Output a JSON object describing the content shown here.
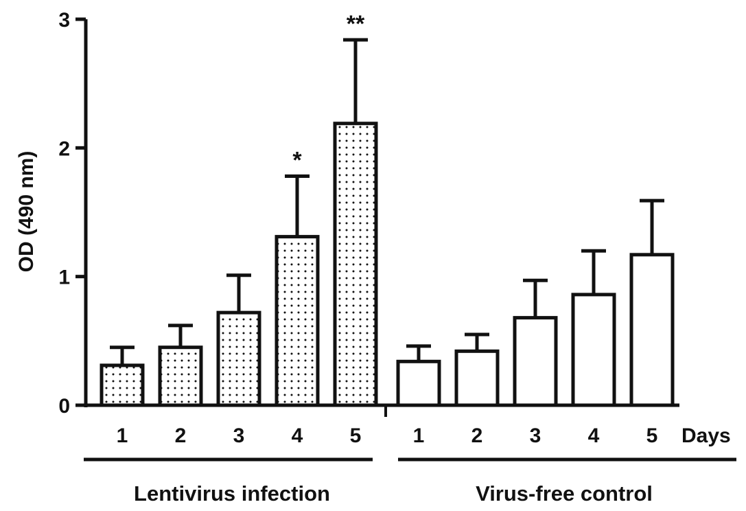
{
  "chart_data": {
    "type": "bar",
    "title": "",
    "xlabel": "Days",
    "ylabel": "OD (490 nm)",
    "ylim": [
      0,
      3
    ],
    "yticks": [
      0,
      1,
      2,
      3
    ],
    "grid": false,
    "groups": [
      {
        "name": "Lentivirus infection",
        "pattern": "dotted",
        "categories": [
          "1",
          "2",
          "3",
          "4",
          "5"
        ],
        "values": [
          0.31,
          0.45,
          0.72,
          1.31,
          2.19
        ],
        "errors": [
          0.14,
          0.17,
          0.29,
          0.47,
          0.65
        ],
        "significance": [
          "",
          "",
          "",
          "*",
          "**"
        ]
      },
      {
        "name": "Virus-free control",
        "pattern": "none",
        "categories": [
          "1",
          "2",
          "3",
          "4",
          "5"
        ],
        "values": [
          0.34,
          0.42,
          0.68,
          0.86,
          1.17
        ],
        "errors": [
          0.12,
          0.13,
          0.29,
          0.34,
          0.42
        ],
        "significance": [
          "",
          "",
          "",
          "",
          ""
        ]
      }
    ],
    "colors": {
      "bar_stroke": "#111111",
      "bar_fill": "#ffffff",
      "dot": "#111111"
    }
  }
}
